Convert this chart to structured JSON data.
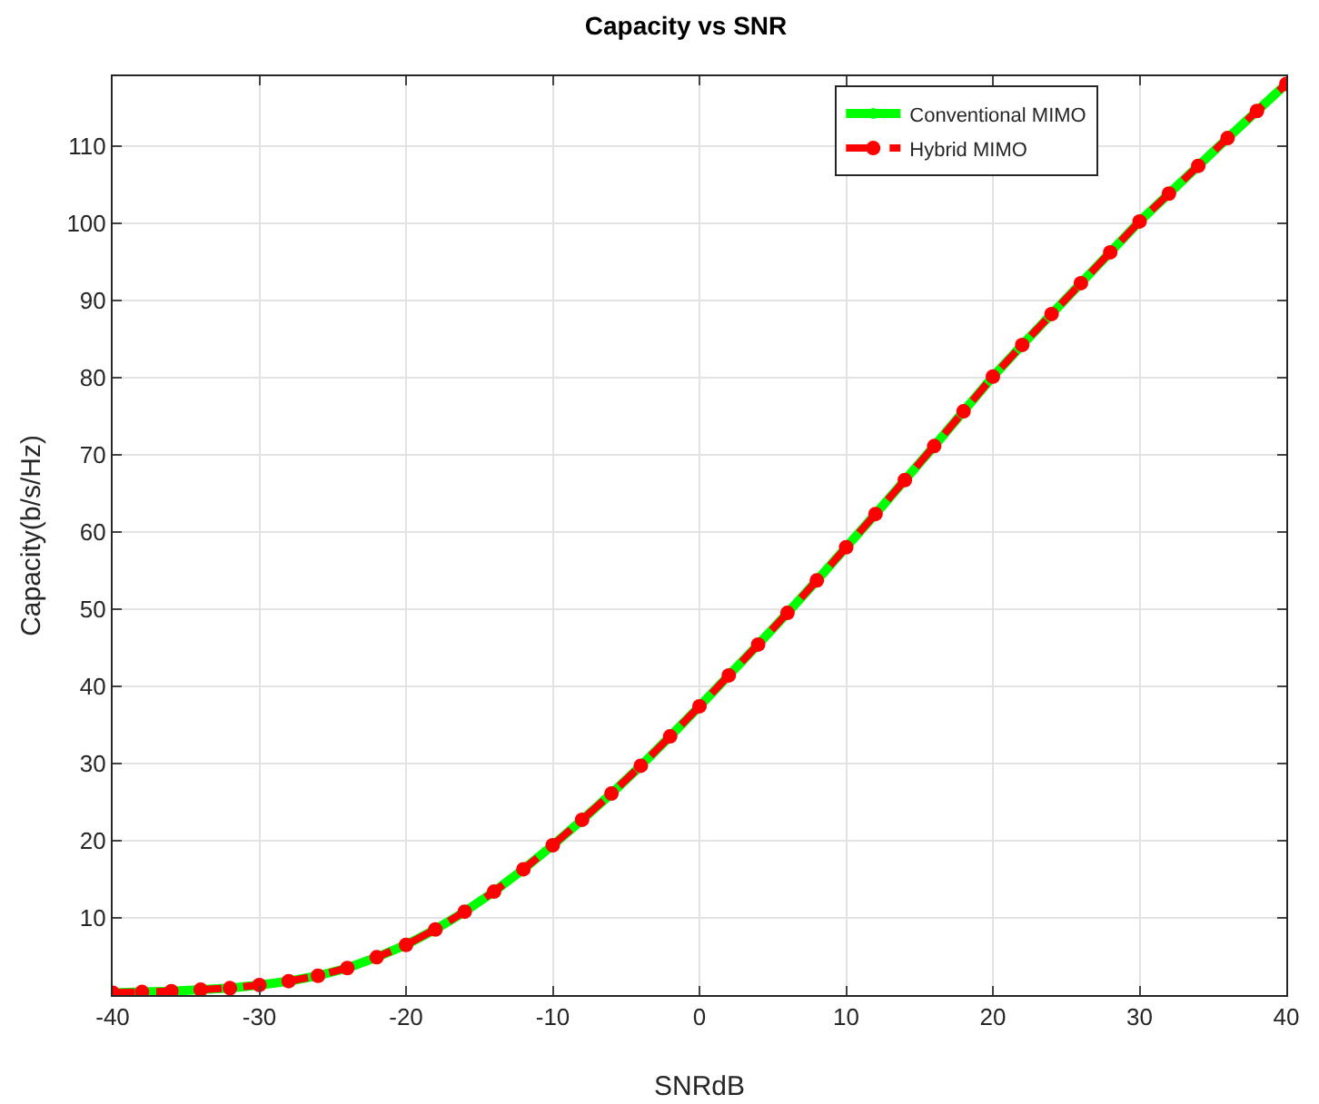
{
  "chart_data": {
    "type": "line",
    "title": "Capacity vs SNR",
    "xlabel": "SNRdB",
    "ylabel": "Capacity(b/s/Hz)",
    "x": [
      -40,
      -38,
      -36,
      -34,
      -32,
      -30,
      -28,
      -26,
      -24,
      -22,
      -20,
      -18,
      -16,
      -14,
      -12,
      -10,
      -8,
      -6,
      -4,
      -2,
      0,
      2,
      4,
      6,
      8,
      10,
      12,
      14,
      16,
      18,
      20,
      22,
      24,
      26,
      28,
      30,
      32,
      34,
      36,
      38,
      40
    ],
    "series": [
      {
        "name": "Conventional MIMO",
        "color": "#00ff00",
        "line_style": "solid",
        "values": [
          0.3,
          0.4,
          0.5,
          0.7,
          0.9,
          1.3,
          1.8,
          2.5,
          3.5,
          4.9,
          6.5,
          8.5,
          10.8,
          13.4,
          16.3,
          19.4,
          22.7,
          26.1,
          29.7,
          33.5,
          37.4,
          41.4,
          45.4,
          49.5,
          53.7,
          58,
          62.3,
          66.7,
          71.1,
          75.6,
          80.1,
          84.2,
          88.2,
          92.2,
          96.2,
          100.2,
          103.8,
          107.4,
          111,
          114.5,
          118
        ]
      },
      {
        "name": "Hybrid MIMO",
        "color": "#ff0000",
        "line_style": "dashed",
        "values": [
          0.3,
          0.4,
          0.5,
          0.7,
          0.9,
          1.3,
          1.8,
          2.5,
          3.5,
          4.9,
          6.5,
          8.5,
          10.8,
          13.4,
          16.3,
          19.4,
          22.7,
          26.1,
          29.7,
          33.5,
          37.4,
          41.4,
          45.4,
          49.5,
          53.7,
          58,
          62.3,
          66.7,
          71.1,
          75.6,
          80.1,
          84.2,
          88.2,
          92.2,
          96.2,
          100.2,
          103.8,
          107.4,
          111,
          114.5,
          118
        ]
      }
    ],
    "xlim": [
      -40,
      40
    ],
    "xticks": [
      -40,
      -30,
      -20,
      -10,
      0,
      10,
      20,
      30,
      40
    ],
    "ylim": [
      0,
      119
    ],
    "yticks": [
      10,
      20,
      30,
      40,
      50,
      60,
      70,
      80,
      90,
      100,
      110
    ],
    "grid": true,
    "legend": "top right",
    "marker": "circle"
  }
}
